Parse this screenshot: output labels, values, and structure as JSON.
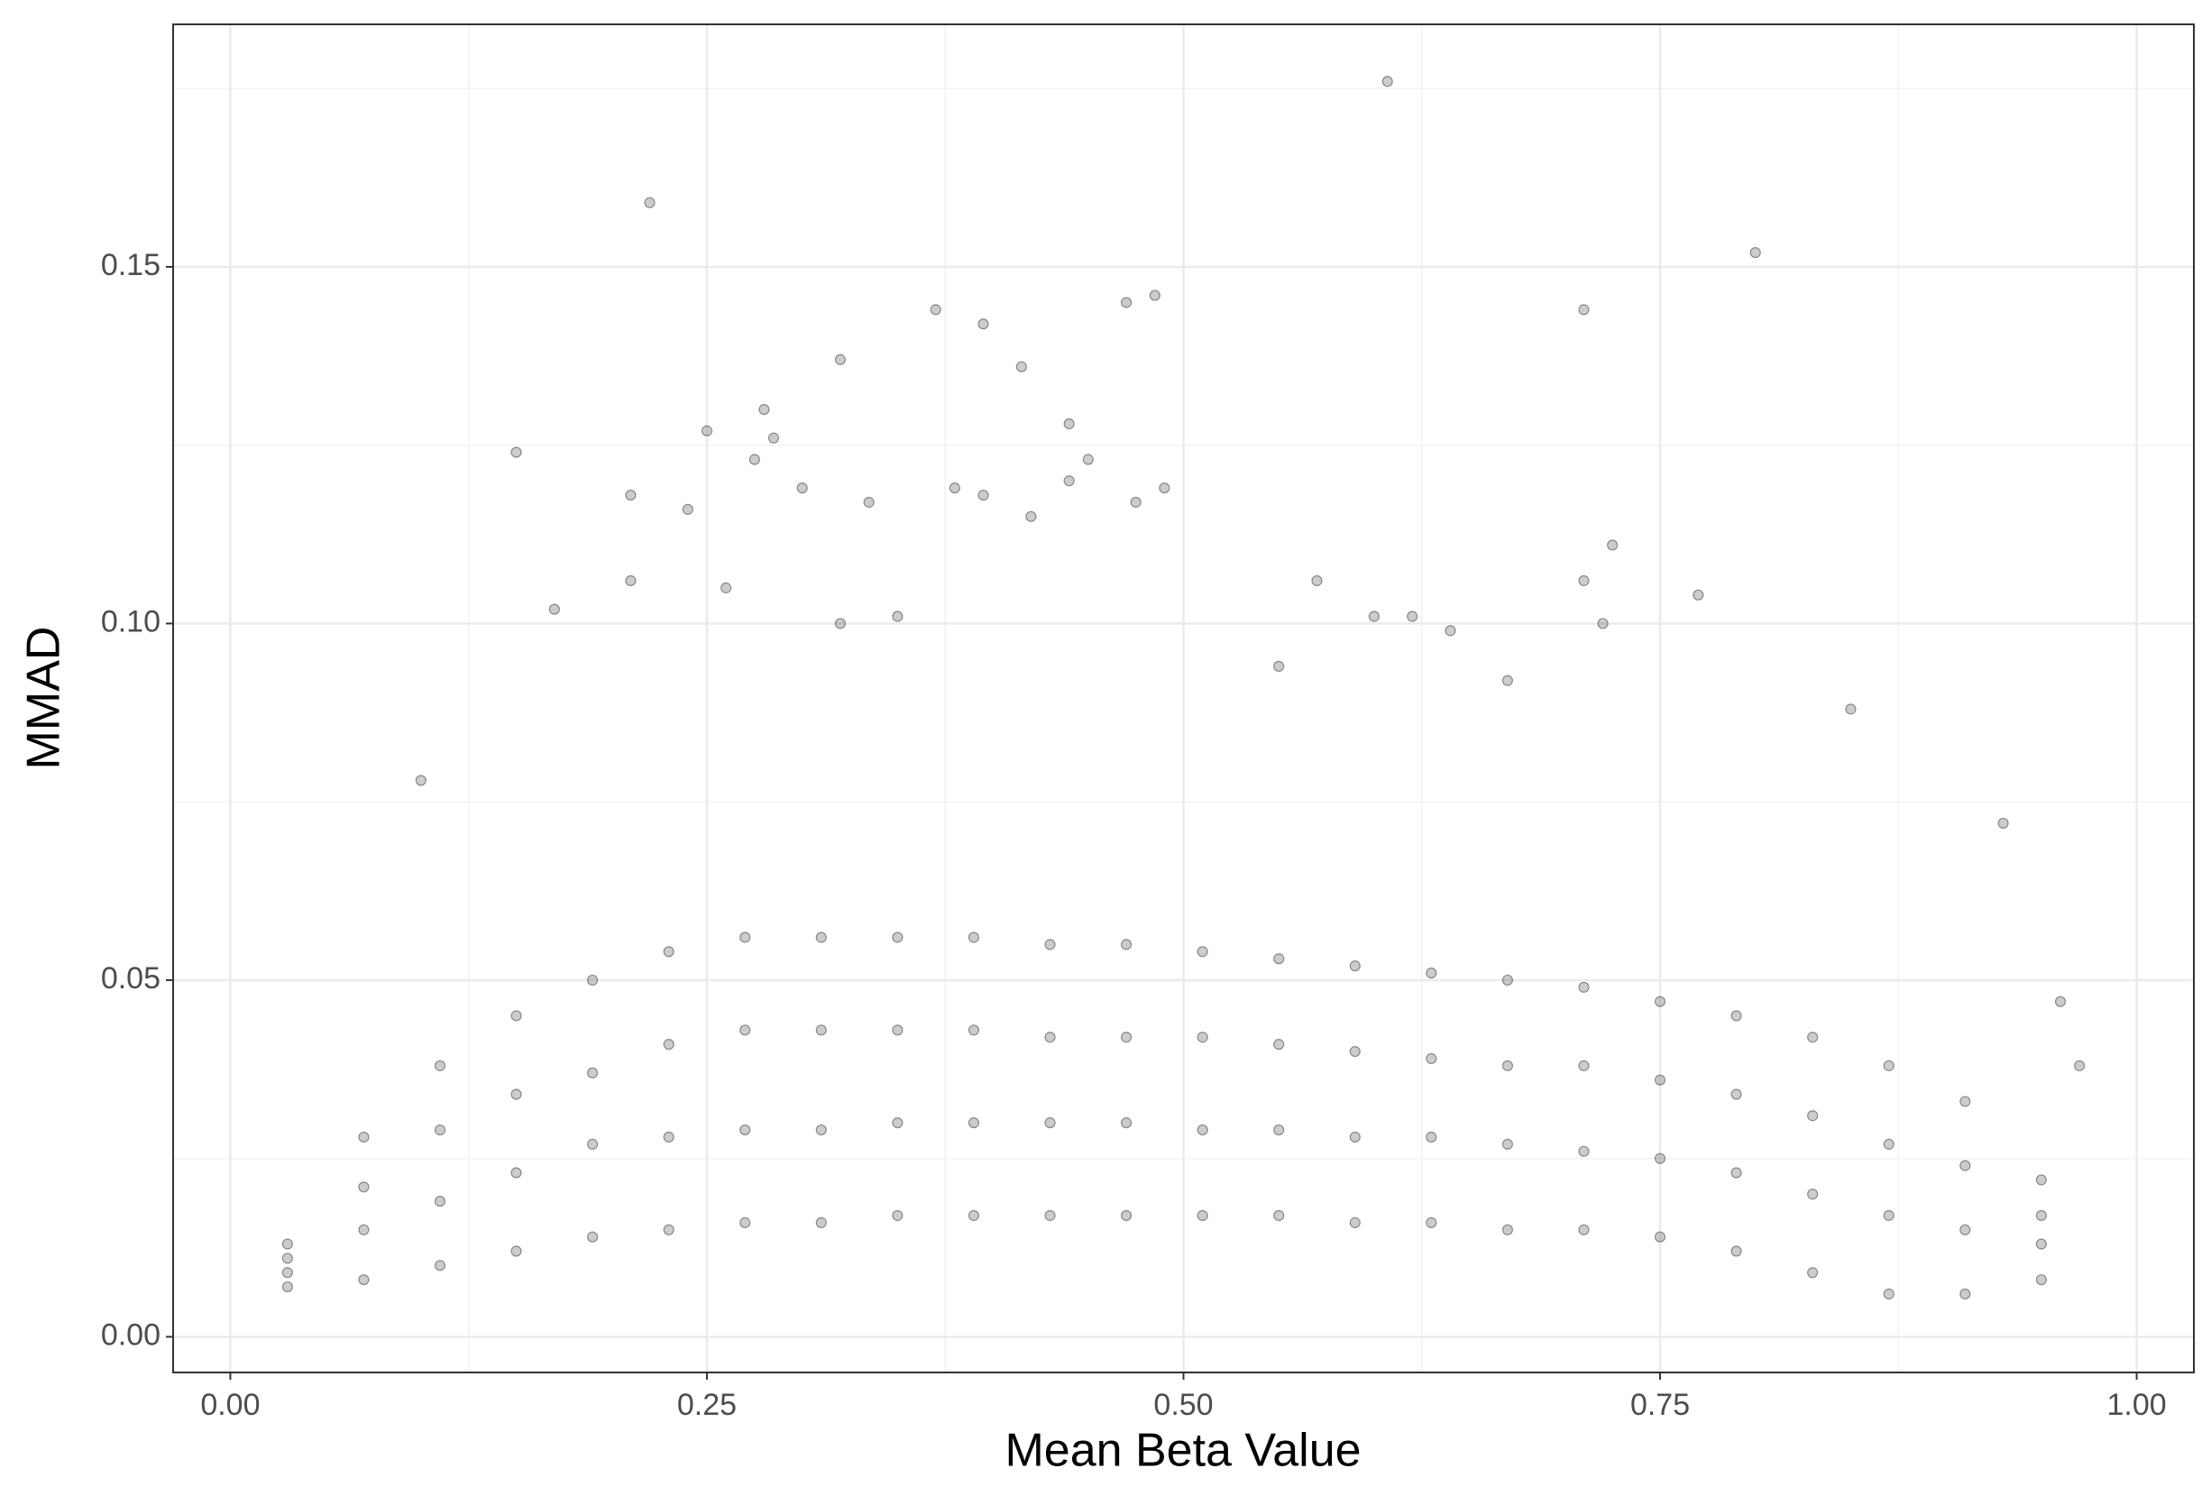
{
  "chart_data": {
    "type": "scatter",
    "x_label": "Mean Beta Value",
    "y_label": "MMAD",
    "xlim": [
      -0.03,
      1.03
    ],
    "ylim": [
      -0.005,
      0.184
    ],
    "xticks": [
      {
        "value": 0,
        "label": "0.00"
      },
      0.25,
      {
        "value": 0.5,
        "label": "0.50"
      },
      0.75,
      {
        "value": 1,
        "label": "1.00"
      }
    ],
    "yticks": [
      {
        "value": 0,
        "label": "0.00"
      },
      0.05,
      {
        "value": 0.1,
        "label": "0.10"
      },
      0.15
    ],
    "x_minor_grid": [
      0.125,
      0.375,
      0.625,
      0.875
    ],
    "y_minor_grid": [
      0.025,
      0.075,
      0.125,
      0.175
    ],
    "grid": true,
    "color": "#000000",
    "series": [
      {
        "x": [
          0.03,
          0.03,
          0.03,
          0.03,
          0.07,
          0.07,
          0.07,
          0.07,
          0.11,
          0.11,
          0.11,
          0.11,
          0.15,
          0.15,
          0.15,
          0.15,
          0.19,
          0.19,
          0.19,
          0.19,
          0.23,
          0.23,
          0.23,
          0.23,
          0.27,
          0.27,
          0.27,
          0.27,
          0.31,
          0.31,
          0.31,
          0.31,
          0.35,
          0.35,
          0.35,
          0.35,
          0.39,
          0.39,
          0.39,
          0.39,
          0.43,
          0.43,
          0.43,
          0.43,
          0.47,
          0.47,
          0.47,
          0.47,
          0.51,
          0.51,
          0.51,
          0.51,
          0.55,
          0.55,
          0.55,
          0.55,
          0.59,
          0.59,
          0.59,
          0.59,
          0.63,
          0.63,
          0.63,
          0.63,
          0.67,
          0.67,
          0.67,
          0.67,
          0.71,
          0.71,
          0.71,
          0.71,
          0.75,
          0.75,
          0.75,
          0.75,
          0.79,
          0.79,
          0.79,
          0.79,
          0.83,
          0.83,
          0.83,
          0.83,
          0.87,
          0.87,
          0.87,
          0.87,
          0.91,
          0.91,
          0.91,
          0.91,
          0.95,
          0.95,
          0.95,
          0.95,
          0.22,
          0.607,
          0.8,
          0.37,
          0.47,
          0.485,
          0.395,
          0.71,
          0.32,
          0.415,
          0.28,
          0.44,
          0.25,
          0.15,
          0.285,
          0.275,
          0.45,
          0.21,
          0.3,
          0.38,
          0.395,
          0.49,
          0.475,
          0.335,
          0.24,
          0.42,
          0.44,
          0.725,
          0.71,
          0.77,
          0.57,
          0.6,
          0.62,
          0.17,
          0.21,
          0.26,
          0.32,
          0.35,
          0.64,
          0.72,
          0.1,
          0.93,
          0.97,
          0.96,
          0.85,
          0.67,
          0.55
        ],
        "y": [
          0.007,
          0.009,
          0.011,
          0.013,
          0.008,
          0.015,
          0.021,
          0.028,
          0.01,
          0.019,
          0.029,
          0.038,
          0.012,
          0.023,
          0.034,
          0.045,
          0.014,
          0.027,
          0.037,
          0.05,
          0.015,
          0.028,
          0.041,
          0.054,
          0.016,
          0.029,
          0.043,
          0.056,
          0.016,
          0.029,
          0.043,
          0.056,
          0.017,
          0.03,
          0.043,
          0.056,
          0.017,
          0.03,
          0.043,
          0.056,
          0.017,
          0.03,
          0.042,
          0.055,
          0.017,
          0.03,
          0.042,
          0.055,
          0.017,
          0.029,
          0.042,
          0.054,
          0.017,
          0.029,
          0.041,
          0.053,
          0.016,
          0.028,
          0.04,
          0.052,
          0.016,
          0.028,
          0.039,
          0.051,
          0.015,
          0.027,
          0.038,
          0.05,
          0.015,
          0.026,
          0.038,
          0.049,
          0.014,
          0.025,
          0.036,
          0.047,
          0.012,
          0.023,
          0.034,
          0.045,
          0.009,
          0.02,
          0.031,
          0.042,
          0.006,
          0.017,
          0.027,
          0.038,
          0.006,
          0.015,
          0.024,
          0.033,
          0.008,
          0.013,
          0.017,
          0.022,
          0.159,
          0.176,
          0.152,
          0.144,
          0.145,
          0.146,
          0.142,
          0.144,
          0.137,
          0.136,
          0.13,
          0.128,
          0.127,
          0.124,
          0.126,
          0.123,
          0.123,
          0.118,
          0.119,
          0.119,
          0.118,
          0.119,
          0.117,
          0.117,
          0.116,
          0.115,
          0.12,
          0.111,
          0.106,
          0.104,
          0.106,
          0.101,
          0.101,
          0.102,
          0.106,
          0.105,
          0.1,
          0.101,
          0.099,
          0.1,
          0.078,
          0.072,
          0.038,
          0.047,
          0.088,
          0.092,
          0.094
        ]
      }
    ]
  }
}
